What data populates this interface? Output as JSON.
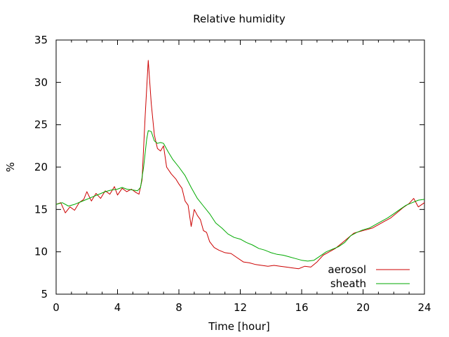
{
  "chart_data": {
    "type": "line",
    "title": "Relative humidity",
    "xlabel": "Time [hour]",
    "ylabel": "%",
    "xlim": [
      0,
      24
    ],
    "ylim": [
      5,
      35
    ],
    "x_ticks": [
      0,
      4,
      8,
      12,
      16,
      20,
      24
    ],
    "y_ticks": [
      5,
      10,
      15,
      20,
      25,
      30,
      35
    ],
    "grid": false,
    "legend_position": "bottom-right",
    "series": [
      {
        "name": "aerosol",
        "color": "#cc0000",
        "points": [
          [
            0,
            15.6
          ],
          [
            0.3,
            15.8
          ],
          [
            0.6,
            14.6
          ],
          [
            0.9,
            15.3
          ],
          [
            1.2,
            14.9
          ],
          [
            1.5,
            15.8
          ],
          [
            1.8,
            16.2
          ],
          [
            2.0,
            17.1
          ],
          [
            2.3,
            16.0
          ],
          [
            2.6,
            16.9
          ],
          [
            2.9,
            16.3
          ],
          [
            3.2,
            17.2
          ],
          [
            3.5,
            16.8
          ],
          [
            3.8,
            17.7
          ],
          [
            4.0,
            16.7
          ],
          [
            4.3,
            17.5
          ],
          [
            4.6,
            17.1
          ],
          [
            4.9,
            17.4
          ],
          [
            5.2,
            17.0
          ],
          [
            5.4,
            16.8
          ],
          [
            5.6,
            18.5
          ],
          [
            5.8,
            26.0
          ],
          [
            6.0,
            32.6
          ],
          [
            6.2,
            27.5
          ],
          [
            6.4,
            23.8
          ],
          [
            6.6,
            22.2
          ],
          [
            6.8,
            21.9
          ],
          [
            7.0,
            22.5
          ],
          [
            7.2,
            20.0
          ],
          [
            7.5,
            19.2
          ],
          [
            7.8,
            18.6
          ],
          [
            8.0,
            18.0
          ],
          [
            8.2,
            17.5
          ],
          [
            8.4,
            16.0
          ],
          [
            8.6,
            15.5
          ],
          [
            8.8,
            13.0
          ],
          [
            9.0,
            15.0
          ],
          [
            9.2,
            14.3
          ],
          [
            9.4,
            13.8
          ],
          [
            9.6,
            12.5
          ],
          [
            9.8,
            12.3
          ],
          [
            10.0,
            11.2
          ],
          [
            10.3,
            10.5
          ],
          [
            10.6,
            10.2
          ],
          [
            11.0,
            9.9
          ],
          [
            11.4,
            9.8
          ],
          [
            11.8,
            9.3
          ],
          [
            12.2,
            8.8
          ],
          [
            12.6,
            8.7
          ],
          [
            13.0,
            8.5
          ],
          [
            13.4,
            8.4
          ],
          [
            13.8,
            8.3
          ],
          [
            14.2,
            8.4
          ],
          [
            14.6,
            8.3
          ],
          [
            15.0,
            8.2
          ],
          [
            15.4,
            8.1
          ],
          [
            15.8,
            8.0
          ],
          [
            16.2,
            8.3
          ],
          [
            16.6,
            8.2
          ],
          [
            17.0,
            8.8
          ],
          [
            17.4,
            9.6
          ],
          [
            17.8,
            10.0
          ],
          [
            18.2,
            10.4
          ],
          [
            18.6,
            11.0
          ],
          [
            19.0,
            11.6
          ],
          [
            19.4,
            12.2
          ],
          [
            19.8,
            12.4
          ],
          [
            20.2,
            12.6
          ],
          [
            20.6,
            12.8
          ],
          [
            21.0,
            13.2
          ],
          [
            21.4,
            13.6
          ],
          [
            21.8,
            14.0
          ],
          [
            22.2,
            14.6
          ],
          [
            22.6,
            15.2
          ],
          [
            23.0,
            15.7
          ],
          [
            23.3,
            16.3
          ],
          [
            23.6,
            15.3
          ],
          [
            24.0,
            15.8
          ]
        ]
      },
      {
        "name": "sheath",
        "color": "#00aa00",
        "points": [
          [
            0,
            15.6
          ],
          [
            0.4,
            15.8
          ],
          [
            0.8,
            15.4
          ],
          [
            1.2,
            15.6
          ],
          [
            1.6,
            15.9
          ],
          [
            2.0,
            16.2
          ],
          [
            2.4,
            16.5
          ],
          [
            2.8,
            16.8
          ],
          [
            3.2,
            17.1
          ],
          [
            3.6,
            17.3
          ],
          [
            4.0,
            17.4
          ],
          [
            4.3,
            17.6
          ],
          [
            4.6,
            17.4
          ],
          [
            5.0,
            17.3
          ],
          [
            5.3,
            17.2
          ],
          [
            5.5,
            17.6
          ],
          [
            5.7,
            20.0
          ],
          [
            5.9,
            23.3
          ],
          [
            6.0,
            24.3
          ],
          [
            6.2,
            24.2
          ],
          [
            6.4,
            23.1
          ],
          [
            6.6,
            22.8
          ],
          [
            6.8,
            22.9
          ],
          [
            7.0,
            22.8
          ],
          [
            7.3,
            21.8
          ],
          [
            7.6,
            20.9
          ],
          [
            8.0,
            20.0
          ],
          [
            8.4,
            19.0
          ],
          [
            8.8,
            17.6
          ],
          [
            9.2,
            16.3
          ],
          [
            9.6,
            15.4
          ],
          [
            10.0,
            14.5
          ],
          [
            10.4,
            13.4
          ],
          [
            10.8,
            12.8
          ],
          [
            11.2,
            12.1
          ],
          [
            11.6,
            11.7
          ],
          [
            12.0,
            11.5
          ],
          [
            12.4,
            11.1
          ],
          [
            12.8,
            10.8
          ],
          [
            13.2,
            10.4
          ],
          [
            13.6,
            10.2
          ],
          [
            14.0,
            9.9
          ],
          [
            14.4,
            9.7
          ],
          [
            14.8,
            9.6
          ],
          [
            15.2,
            9.4
          ],
          [
            15.6,
            9.2
          ],
          [
            16.0,
            9.0
          ],
          [
            16.4,
            8.9
          ],
          [
            16.8,
            9.0
          ],
          [
            17.2,
            9.5
          ],
          [
            17.6,
            10.0
          ],
          [
            18.0,
            10.3
          ],
          [
            18.4,
            10.6
          ],
          [
            18.8,
            11.1
          ],
          [
            19.2,
            11.9
          ],
          [
            19.6,
            12.3
          ],
          [
            20.0,
            12.6
          ],
          [
            20.4,
            12.8
          ],
          [
            20.8,
            13.2
          ],
          [
            21.2,
            13.6
          ],
          [
            21.6,
            14.0
          ],
          [
            22.0,
            14.5
          ],
          [
            22.4,
            15.0
          ],
          [
            22.8,
            15.5
          ],
          [
            23.2,
            15.8
          ],
          [
            23.6,
            16.1
          ],
          [
            24.0,
            16.2
          ]
        ]
      }
    ]
  }
}
